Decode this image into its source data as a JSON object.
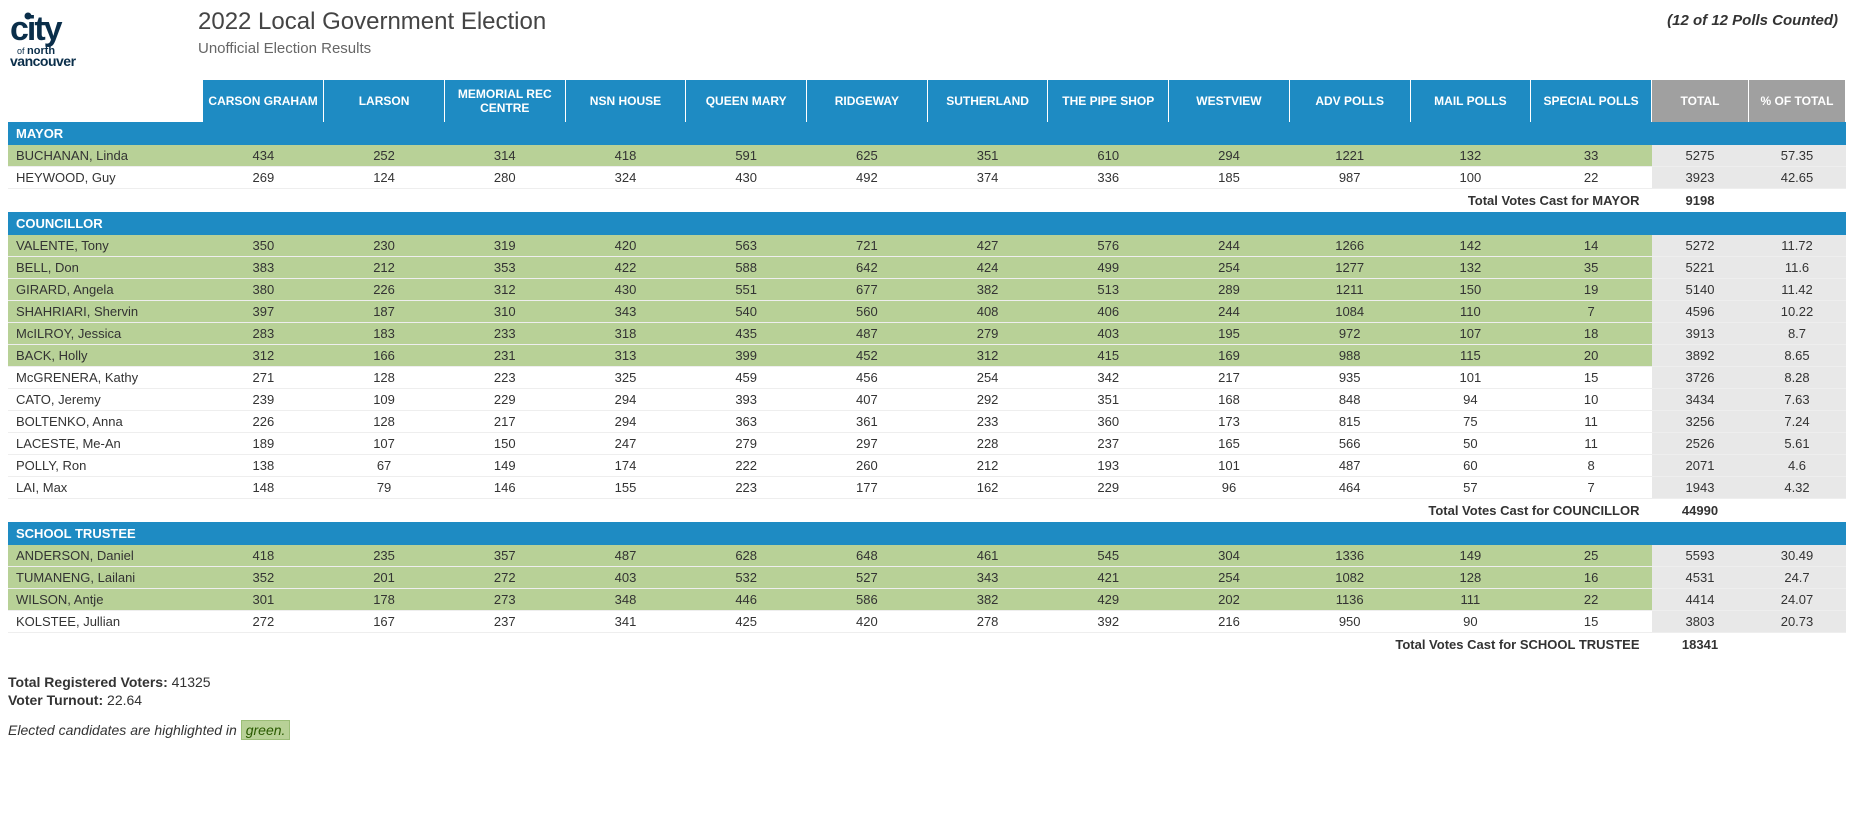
{
  "header": {
    "title": "2022 Local Government Election",
    "subtitle": "Unofficial Election Results",
    "polls_counted": "(12 of 12 Polls Counted)",
    "logo_text_top": "city",
    "logo_text_bottom1": "ofnorth",
    "logo_text_bottom2": "vancouver"
  },
  "colors": {
    "header_blue": "#1e8bc3",
    "header_grey": "#a0a0a0",
    "elected_green": "#b8d197",
    "total_grey": "#e8e8e8",
    "logo_color": "#0a2e4a"
  },
  "columns": {
    "polls": [
      "CARSON GRAHAM",
      "LARSON",
      "MEMORIAL REC CENTRE",
      "NSN HOUSE",
      "QUEEN MARY",
      "RIDGEWAY",
      "SUTHERLAND",
      "THE PIPE SHOP",
      "WESTVIEW",
      "ADV POLLS",
      "MAIL POLLS",
      "SPECIAL POLLS"
    ],
    "totals": [
      "TOTAL",
      "% OF TOTAL"
    ]
  },
  "sections": [
    {
      "title": "MAYOR",
      "candidates": [
        {
          "name": "BUCHANAN, Linda",
          "elected": true,
          "polls": [
            434,
            252,
            314,
            418,
            591,
            625,
            351,
            610,
            294,
            1221,
            132,
            33
          ],
          "total": 5275,
          "pct": "57.35"
        },
        {
          "name": "HEYWOOD, Guy",
          "elected": false,
          "polls": [
            269,
            124,
            280,
            324,
            430,
            492,
            374,
            336,
            185,
            987,
            100,
            22
          ],
          "total": 3923,
          "pct": "42.65"
        }
      ],
      "total_label": "Total Votes Cast for MAYOR",
      "total_value": 9198
    },
    {
      "title": "COUNCILLOR",
      "candidates": [
        {
          "name": "VALENTE, Tony",
          "elected": true,
          "polls": [
            350,
            230,
            319,
            420,
            563,
            721,
            427,
            576,
            244,
            1266,
            142,
            14
          ],
          "total": 5272,
          "pct": "11.72"
        },
        {
          "name": "BELL, Don",
          "elected": true,
          "polls": [
            383,
            212,
            353,
            422,
            588,
            642,
            424,
            499,
            254,
            1277,
            132,
            35
          ],
          "total": 5221,
          "pct": "11.6"
        },
        {
          "name": "GIRARD, Angela",
          "elected": true,
          "polls": [
            380,
            226,
            312,
            430,
            551,
            677,
            382,
            513,
            289,
            1211,
            150,
            19
          ],
          "total": 5140,
          "pct": "11.42"
        },
        {
          "name": "SHAHRIARI, Shervin",
          "elected": true,
          "polls": [
            397,
            187,
            310,
            343,
            540,
            560,
            408,
            406,
            244,
            1084,
            110,
            7
          ],
          "total": 4596,
          "pct": "10.22"
        },
        {
          "name": "McILROY, Jessica",
          "elected": true,
          "polls": [
            283,
            183,
            233,
            318,
            435,
            487,
            279,
            403,
            195,
            972,
            107,
            18
          ],
          "total": 3913,
          "pct": "8.7"
        },
        {
          "name": "BACK, Holly",
          "elected": true,
          "polls": [
            312,
            166,
            231,
            313,
            399,
            452,
            312,
            415,
            169,
            988,
            115,
            20
          ],
          "total": 3892,
          "pct": "8.65"
        },
        {
          "name": "McGRENERA, Kathy",
          "elected": false,
          "polls": [
            271,
            128,
            223,
            325,
            459,
            456,
            254,
            342,
            217,
            935,
            101,
            15
          ],
          "total": 3726,
          "pct": "8.28"
        },
        {
          "name": "CATO, Jeremy",
          "elected": false,
          "polls": [
            239,
            109,
            229,
            294,
            393,
            407,
            292,
            351,
            168,
            848,
            94,
            10
          ],
          "total": 3434,
          "pct": "7.63"
        },
        {
          "name": "BOLTENKO, Anna",
          "elected": false,
          "polls": [
            226,
            128,
            217,
            294,
            363,
            361,
            233,
            360,
            173,
            815,
            75,
            11
          ],
          "total": 3256,
          "pct": "7.24"
        },
        {
          "name": "LACESTE, Me-An",
          "elected": false,
          "polls": [
            189,
            107,
            150,
            247,
            279,
            297,
            228,
            237,
            165,
            566,
            50,
            11
          ],
          "total": 2526,
          "pct": "5.61"
        },
        {
          "name": "POLLY, Ron",
          "elected": false,
          "polls": [
            138,
            67,
            149,
            174,
            222,
            260,
            212,
            193,
            101,
            487,
            60,
            8
          ],
          "total": 2071,
          "pct": "4.6"
        },
        {
          "name": "LAI, Max",
          "elected": false,
          "polls": [
            148,
            79,
            146,
            155,
            223,
            177,
            162,
            229,
            96,
            464,
            57,
            7
          ],
          "total": 1943,
          "pct": "4.32"
        }
      ],
      "total_label": "Total Votes Cast for COUNCILLOR",
      "total_value": 44990
    },
    {
      "title": "SCHOOL TRUSTEE",
      "candidates": [
        {
          "name": "ANDERSON, Daniel",
          "elected": true,
          "polls": [
            418,
            235,
            357,
            487,
            628,
            648,
            461,
            545,
            304,
            1336,
            149,
            25
          ],
          "total": 5593,
          "pct": "30.49"
        },
        {
          "name": "TUMANENG, Lailani",
          "elected": true,
          "polls": [
            352,
            201,
            272,
            403,
            532,
            527,
            343,
            421,
            254,
            1082,
            128,
            16
          ],
          "total": 4531,
          "pct": "24.7"
        },
        {
          "name": "WILSON, Antje",
          "elected": true,
          "polls": [
            301,
            178,
            273,
            348,
            446,
            586,
            382,
            429,
            202,
            1136,
            111,
            22
          ],
          "total": 4414,
          "pct": "24.07"
        },
        {
          "name": "KOLSTEE, Jullian",
          "elected": false,
          "polls": [
            272,
            167,
            237,
            341,
            425,
            420,
            278,
            392,
            216,
            950,
            90,
            15
          ],
          "total": 3803,
          "pct": "20.73"
        }
      ],
      "total_label": "Total Votes Cast for SCHOOL TRUSTEE",
      "total_value": 18341
    }
  ],
  "footer": {
    "registered_label": "Total Registered Voters:",
    "registered_value": "41325",
    "turnout_label": "Voter Turnout:",
    "turnout_value": "22.64",
    "legend_prefix": "Elected candidates are highlighted in ",
    "legend_word": "green."
  }
}
